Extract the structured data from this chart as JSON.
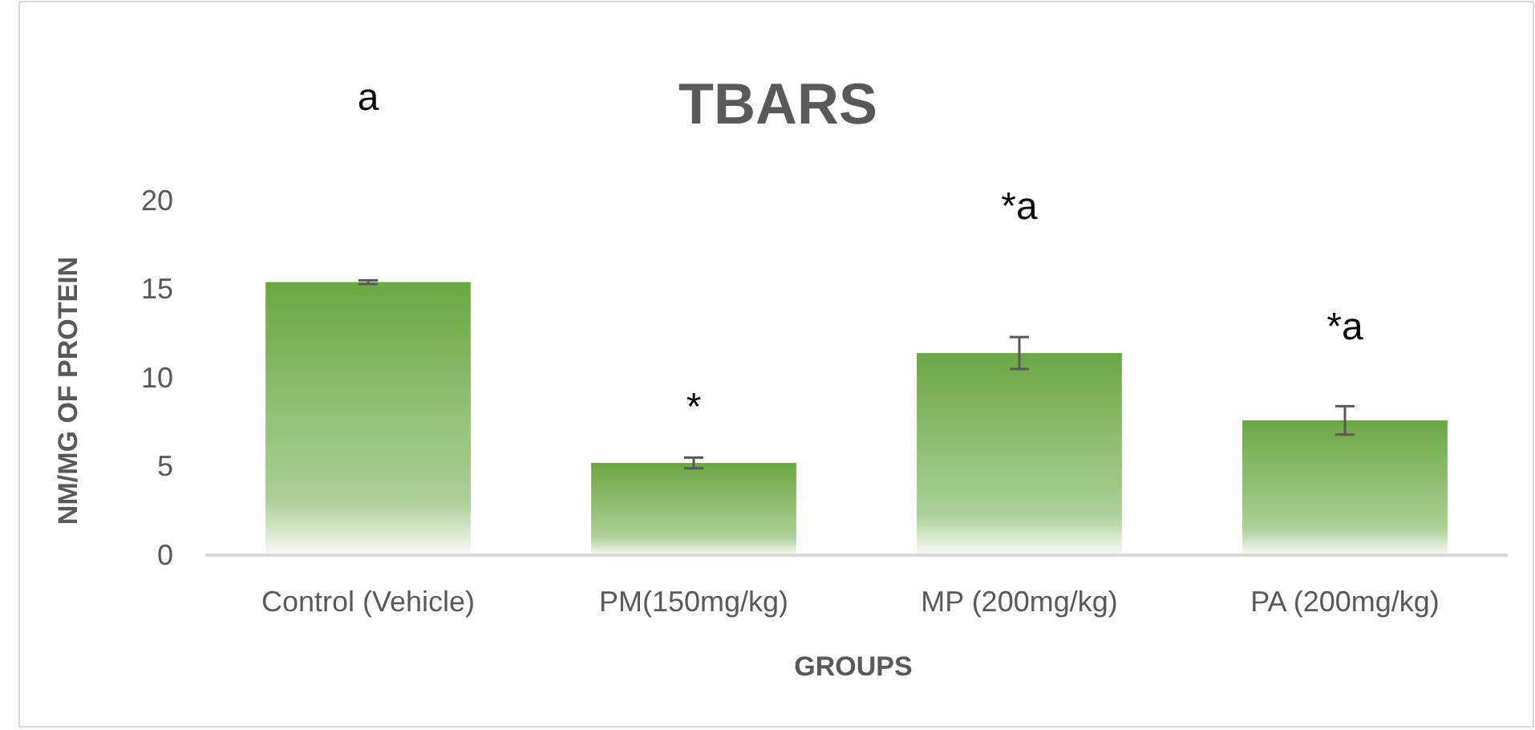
{
  "chart_data": {
    "type": "bar",
    "title": "TBARS",
    "xlabel": "GROUPS",
    "ylabel": "NM/MG OF PROTEIN",
    "categories": [
      "Control (Vehicle)",
      "PM(150mg/kg)",
      "MP (200mg/kg)",
      "PA (200mg/kg)"
    ],
    "values": [
      15.4,
      5.2,
      11.4,
      7.6
    ],
    "errors": [
      0.1,
      0.3,
      0.9,
      0.8
    ],
    "color": "#6aa842",
    "ylim": [
      0,
      20
    ],
    "yticks": [
      0,
      5,
      10,
      15,
      20
    ],
    "grid": false,
    "annotations": [
      "a",
      "*",
      "*a",
      "*a"
    ]
  }
}
